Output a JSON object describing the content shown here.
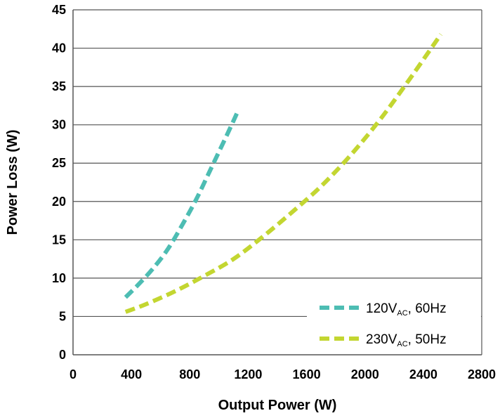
{
  "chart_data": {
    "type": "line",
    "xlabel": "Output Power (W)",
    "ylabel": "Power Loss (W)",
    "xlim": [
      0,
      2800
    ],
    "ylim": [
      0,
      45
    ],
    "xticks": [
      0,
      400,
      800,
      1200,
      1600,
      2000,
      2400,
      2800
    ],
    "yticks": [
      0,
      5,
      10,
      15,
      20,
      25,
      30,
      35,
      40,
      45
    ],
    "grid": "horizontal",
    "legend_position": "bottom-right",
    "series": [
      {
        "name_main": "120V",
        "name_sub": "AC",
        "name_tail": ", 60Hz",
        "color": "#4dbdb3",
        "style": "dashed",
        "points": [
          [
            360,
            7.5
          ],
          [
            450,
            9.2
          ],
          [
            550,
            11.3
          ],
          [
            650,
            13.8
          ],
          [
            750,
            17.0
          ],
          [
            850,
            20.5
          ],
          [
            950,
            24.5
          ],
          [
            1050,
            28.5
          ],
          [
            1130,
            31.8
          ]
        ]
      },
      {
        "name_main": "230V",
        "name_sub": "AC",
        "name_tail": ", 50Hz",
        "color": "#c3d631",
        "style": "dashed",
        "points": [
          [
            360,
            5.6
          ],
          [
            500,
            6.6
          ],
          [
            700,
            8.3
          ],
          [
            900,
            10.3
          ],
          [
            1100,
            12.5
          ],
          [
            1300,
            15.4
          ],
          [
            1500,
            18.6
          ],
          [
            1700,
            22.0
          ],
          [
            1900,
            26.0
          ],
          [
            2100,
            30.6
          ],
          [
            2300,
            35.8
          ],
          [
            2520,
            41.8
          ]
        ]
      }
    ]
  }
}
